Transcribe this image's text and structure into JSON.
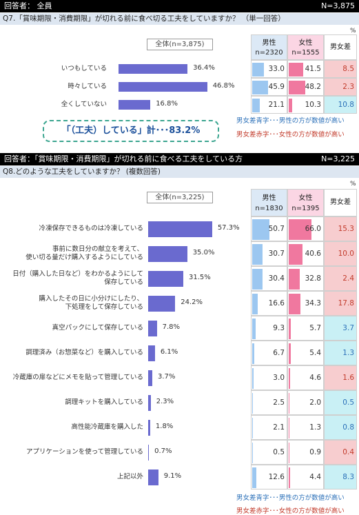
{
  "q7": {
    "respondent": "回答者： 全員",
    "n": "N=3,875",
    "question": "Q7.「賞味期限・消費期限」が切れる前に食べ切る工夫をしていますか？ （単一回答）",
    "percent_mark": "%",
    "all_label": "全体(n=3,875)",
    "col_male": "男性",
    "col_male_n": "n=2320",
    "col_female": "女性",
    "col_female_n": "n=1555",
    "col_diff": "男女差",
    "callout": "「（工夫）している」計･･･83.2%",
    "legend_blue": "男女差青字･･･男性の方が数値が高い",
    "legend_red": "男女差赤字･･･女性の方が数値が高い"
  },
  "q8": {
    "respondent": "回答者：「賞味期限・消費期限」が切れる前に食べる工夫をしている方",
    "n": "N=3,225",
    "question": "Q8.どのような工夫をしていますか？ (複数回答)",
    "percent_mark": "%",
    "all_label": "全体(n=3,225)",
    "col_male": "男性",
    "col_male_n": "n=1830",
    "col_female": "女性",
    "col_female_n": "n=1395",
    "col_diff": "男女差",
    "legend_blue": "男女差青字･･･男性の方が数値が高い",
    "legend_red": "男女差赤字･･･女性の方が数値が高い"
  },
  "chart_data": [
    {
      "type": "bar",
      "orientation": "horizontal",
      "categories": [
        "いつもしている",
        "時々している",
        "全くしていない"
      ],
      "series": [
        {
          "name": "全体(n=3,875)",
          "values": [
            36.4,
            46.8,
            16.8
          ]
        },
        {
          "name": "男性",
          "values": [
            33.0,
            45.9,
            21.1
          ]
        },
        {
          "name": "女性",
          "values": [
            41.5,
            48.2,
            10.3
          ]
        },
        {
          "name": "男女差",
          "values": [
            8.5,
            2.3,
            10.8
          ]
        }
      ],
      "labels_total": [
        "36.4%",
        "46.8%",
        "16.8%"
      ],
      "labels_male": [
        "33.0",
        "45.9",
        "21.1"
      ],
      "labels_female": [
        "41.5",
        "48.2",
        "10.3"
      ],
      "labels_diff": [
        "8.5",
        "2.3",
        "10.8"
      ],
      "diff_color": [
        "red",
        "red",
        "blue"
      ]
    },
    {
      "type": "bar",
      "orientation": "horizontal",
      "categories": [
        "冷凍保存できるものは冷凍している",
        "事前に数日分の献立を考えて、\n使い切る量だけ購入するようにしている",
        "日付（購入した日など）をわかるようにして\n保存している",
        "購入したその日に小分けにしたり、\n下処理をして保存している",
        "真空パックにして保存している",
        "調理済み（お惣菜など）を購入している",
        "冷蔵庫の扉などにメモを貼って管理している",
        "調理キットを購入している",
        "高性能冷蔵庫を購入した",
        "アプリケーションを使って管理している",
        "上記以外"
      ],
      "series": [
        {
          "name": "全体(n=3,225)",
          "values": [
            57.3,
            35.0,
            31.5,
            24.2,
            7.8,
            6.1,
            3.7,
            2.3,
            1.8,
            0.7,
            9.1
          ]
        },
        {
          "name": "男性",
          "values": [
            50.7,
            30.7,
            30.4,
            16.6,
            9.3,
            6.7,
            3.0,
            2.5,
            2.1,
            0.5,
            12.6
          ]
        },
        {
          "name": "女性",
          "values": [
            66.0,
            40.6,
            32.8,
            34.3,
            5.7,
            5.4,
            4.6,
            2.0,
            1.3,
            0.9,
            4.4
          ]
        },
        {
          "name": "男女差",
          "values": [
            15.3,
            10.0,
            2.4,
            17.8,
            3.7,
            1.3,
            1.6,
            0.5,
            0.8,
            0.4,
            8.3
          ]
        }
      ],
      "labels_total": [
        "57.3%",
        "35.0%",
        "31.5%",
        "24.2%",
        "7.8%",
        "6.1%",
        "3.7%",
        "2.3%",
        "1.8%",
        "0.7%",
        "9.1%"
      ],
      "labels_male": [
        "50.7",
        "30.7",
        "30.4",
        "16.6",
        "9.3",
        "6.7",
        "3.0",
        "2.5",
        "2.1",
        "0.5",
        "12.6"
      ],
      "labels_female": [
        "66.0",
        "40.6",
        "32.8",
        "34.3",
        "5.7",
        "5.4",
        "4.6",
        "2.0",
        "1.3",
        "0.9",
        "4.4"
      ],
      "labels_diff": [
        "15.3",
        "10.0",
        "2.4",
        "17.8",
        "3.7",
        "1.3",
        "1.6",
        "0.5",
        "0.8",
        "0.4",
        "8.3"
      ],
      "diff_color": [
        "red",
        "red",
        "red",
        "red",
        "blue",
        "blue",
        "red",
        "blue",
        "blue",
        "red",
        "blue"
      ]
    }
  ],
  "colors": {
    "total_bar": "#6a6acf",
    "male_bar": "#9cc7f0",
    "female_bar": "#f0789f",
    "diff_female_higher_bg": "#f7cdcf",
    "diff_male_higher_bg": "#c9f0f5"
  }
}
